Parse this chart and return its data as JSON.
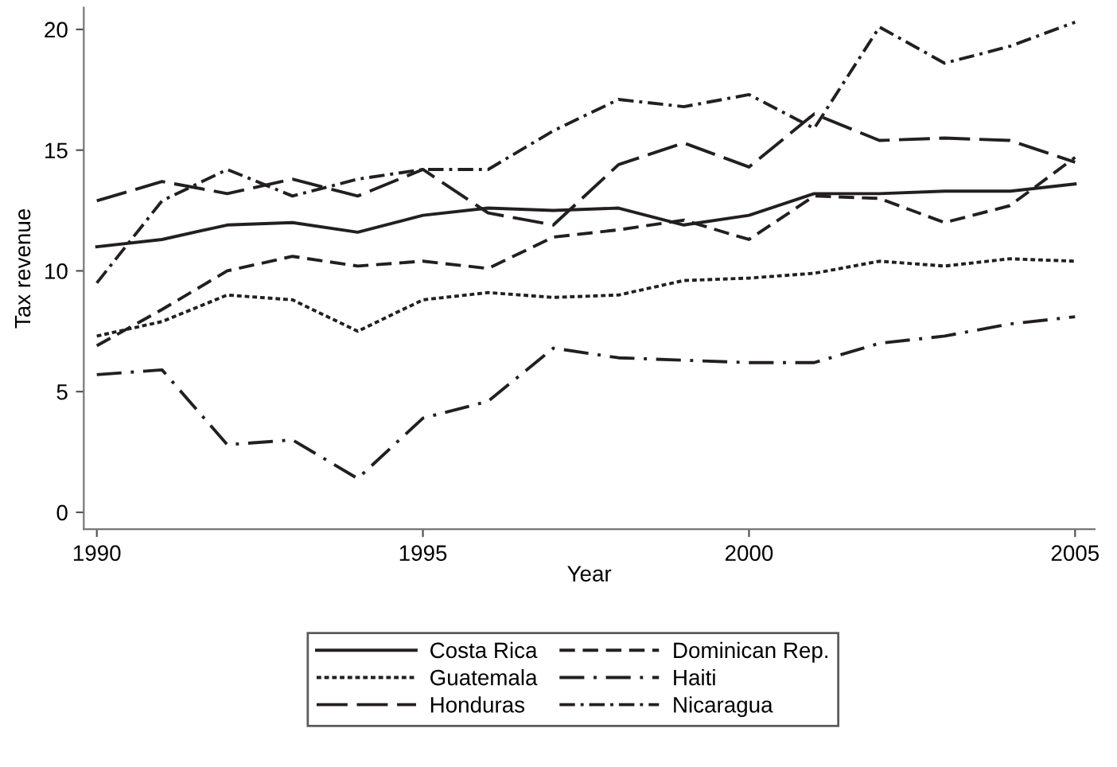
{
  "chart_data": {
    "type": "line",
    "xlabel": "Year",
    "ylabel": "Tax revenue",
    "x": [
      1990,
      1991,
      1992,
      1993,
      1994,
      1995,
      1996,
      1997,
      1998,
      1999,
      2000,
      2001,
      2002,
      2003,
      2004,
      2005
    ],
    "xlim": [
      1989.8,
      2005.3
    ],
    "xticks": [
      1990,
      1995,
      2000,
      2005
    ],
    "ylim": [
      -0.7,
      20.9
    ],
    "yticks": [
      0,
      5,
      10,
      15,
      20
    ],
    "grid": false,
    "legend": "bottom",
    "marker": "none",
    "series": [
      {
        "name": "Costa Rica",
        "color": "#231f20",
        "line_style": "solid",
        "values": [
          11.0,
          11.3,
          11.9,
          12.0,
          11.6,
          12.3,
          12.6,
          12.5,
          12.6,
          11.9,
          12.3,
          13.2,
          13.2,
          13.3,
          13.3,
          13.6
        ]
      },
      {
        "name": "Dominican Rep.",
        "color": "#231f20",
        "line_style": "dashed",
        "values": [
          6.9,
          8.4,
          10.0,
          10.6,
          10.2,
          10.4,
          10.1,
          11.4,
          11.7,
          12.1,
          11.3,
          13.1,
          13.0,
          12.0,
          12.7,
          14.7
        ]
      },
      {
        "name": "Guatemala",
        "color": "#231f20",
        "line_style": "dotted",
        "values": [
          7.3,
          7.9,
          9.0,
          8.8,
          7.5,
          8.8,
          9.1,
          8.9,
          9.0,
          9.6,
          9.7,
          9.9,
          10.4,
          10.2,
          10.5,
          10.4
        ]
      },
      {
        "name": "Haiti",
        "color": "#231f20",
        "line_style": "longdashdot",
        "values": [
          5.7,
          5.9,
          2.8,
          3.0,
          1.4,
          3.9,
          4.6,
          6.8,
          6.4,
          6.3,
          6.2,
          6.2,
          7.0,
          7.3,
          7.8,
          8.1
        ]
      },
      {
        "name": "Honduras",
        "color": "#231f20",
        "line_style": "longdash",
        "values": [
          12.9,
          13.7,
          13.2,
          13.8,
          13.1,
          14.2,
          12.4,
          11.9,
          14.4,
          15.3,
          14.3,
          16.5,
          15.4,
          15.5,
          15.4,
          14.5
        ]
      },
      {
        "name": "Nicaragua",
        "color": "#231f20",
        "line_style": "dashdot",
        "values": [
          9.5,
          12.9,
          14.2,
          13.1,
          13.8,
          14.2,
          14.2,
          15.8,
          17.1,
          16.8,
          17.3,
          15.9,
          20.1,
          18.6,
          19.3,
          20.3
        ]
      }
    ]
  }
}
